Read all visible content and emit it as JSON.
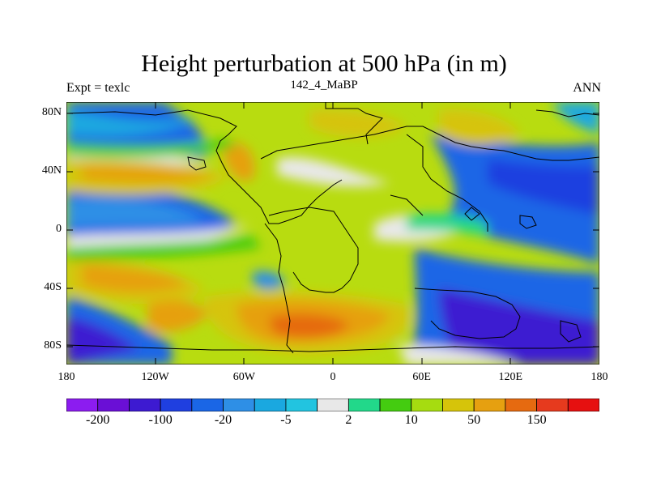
{
  "title": "Height perturbation at 500 hPa (in m)",
  "subtitle_left": "Expt = texlc",
  "subtitle_center": "142_4_MaBP",
  "subtitle_right": "ANN",
  "map": {
    "projection": "equirectangular",
    "lon_range": [
      -180,
      180
    ],
    "lat_range": [
      -90,
      90
    ],
    "y_tick_labels": [
      "80N",
      "40N",
      "0",
      "40S",
      "80S"
    ],
    "x_tick_labels": [
      "180",
      "120W",
      "60W",
      "0",
      "60E",
      "120E",
      "180"
    ]
  },
  "colorbar": {
    "colors": [
      "#8c1cf0",
      "#6a0fd6",
      "#3d1ad1",
      "#1f3fe0",
      "#1a66e6",
      "#2e8fe6",
      "#1aa8e0",
      "#22c4e0",
      "#e8e8e8",
      "#22d88a",
      "#44cc10",
      "#a6dc10",
      "#d6c40a",
      "#e6a010",
      "#e66a10",
      "#e63a1e",
      "#e61010"
    ],
    "tick_labels": [
      "-200",
      "-100",
      "-20",
      "-5",
      "2",
      "10",
      "50",
      "150"
    ]
  }
}
